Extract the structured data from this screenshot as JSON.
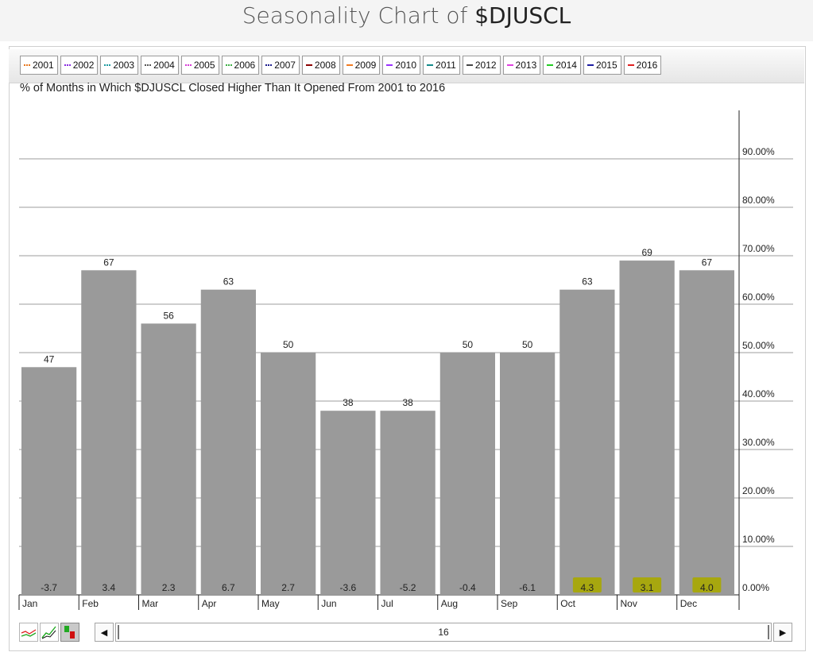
{
  "page": {
    "title_prefix": "Seasonality Chart of ",
    "title_symbol": "$DJUSCL"
  },
  "legend": [
    {
      "label": "2001",
      "color": "#e8771e",
      "style": "dotted"
    },
    {
      "label": "2002",
      "color": "#8a2be2",
      "style": "dotted"
    },
    {
      "label": "2003",
      "color": "#1e9aa0",
      "style": "dotted"
    },
    {
      "label": "2004",
      "color": "#555555",
      "style": "dotted"
    },
    {
      "label": "2005",
      "color": "#d63bd6",
      "style": "dotted"
    },
    {
      "label": "2006",
      "color": "#3cb043",
      "style": "dotted"
    },
    {
      "label": "2007",
      "color": "#1a1a8c",
      "style": "dotted"
    },
    {
      "label": "2008",
      "color": "#8b0000",
      "style": "solid"
    },
    {
      "label": "2009",
      "color": "#f07b22",
      "style": "solid"
    },
    {
      "label": "2010",
      "color": "#9b30ff",
      "style": "solid"
    },
    {
      "label": "2011",
      "color": "#138a8a",
      "style": "solid"
    },
    {
      "label": "2012",
      "color": "#444444",
      "style": "solid"
    },
    {
      "label": "2013",
      "color": "#e040e0",
      "style": "solid"
    },
    {
      "label": "2014",
      "color": "#22cc22",
      "style": "solid"
    },
    {
      "label": "2015",
      "color": "#1a1aa0",
      "style": "solid"
    },
    {
      "label": "2016",
      "color": "#e02020",
      "style": "solid"
    }
  ],
  "chart_data": {
    "type": "bar",
    "title": "Seasonality Chart of $DJUSCL",
    "subtitle": "% of Months in Which $DJUSCL Closed Higher Than It Opened From 2001 to 2016",
    "categories": [
      "Jan",
      "Feb",
      "Mar",
      "Apr",
      "May",
      "Jun",
      "Jul",
      "Aug",
      "Sep",
      "Oct",
      "Nov",
      "Dec"
    ],
    "values": [
      47,
      67,
      56,
      63,
      50,
      38,
      38,
      50,
      50,
      63,
      69,
      67
    ],
    "value_labels": [
      "47",
      "67",
      "56",
      "63",
      "50",
      "38",
      "38",
      "50",
      "50",
      "63",
      "69",
      "67"
    ],
    "avg_change_labels": [
      "-3.7",
      "3.4",
      "2.3",
      "6.7",
      "2.7",
      "-3.6",
      "-5.2",
      "-0.4",
      "-6.1",
      "4.3",
      "3.1",
      "4.0"
    ],
    "highlighted_months": [
      "Oct",
      "Nov",
      "Dec"
    ],
    "y_ticks": [
      {
        "value": 0,
        "label": "0.00%"
      },
      {
        "value": 10,
        "label": "10.00%"
      },
      {
        "value": 20,
        "label": "20.00%"
      },
      {
        "value": 30,
        "label": "30.00%"
      },
      {
        "value": 40,
        "label": "40.00%"
      },
      {
        "value": 50,
        "label": "50.00%"
      },
      {
        "value": 60,
        "label": "60.00%"
      },
      {
        "value": 70,
        "label": "70.00%"
      },
      {
        "value": 80,
        "label": "80.00%"
      },
      {
        "value": 90,
        "label": "90.00%"
      }
    ],
    "ylim": [
      0,
      100
    ],
    "grid": true,
    "y_axis_side": "right",
    "bar_color": "#9a9a9a",
    "highlight_color": "#a8a800"
  },
  "controls": {
    "years_value": "16",
    "tools": [
      "line-chart-icon",
      "performance-chart-icon",
      "bar-chart-icon"
    ]
  }
}
